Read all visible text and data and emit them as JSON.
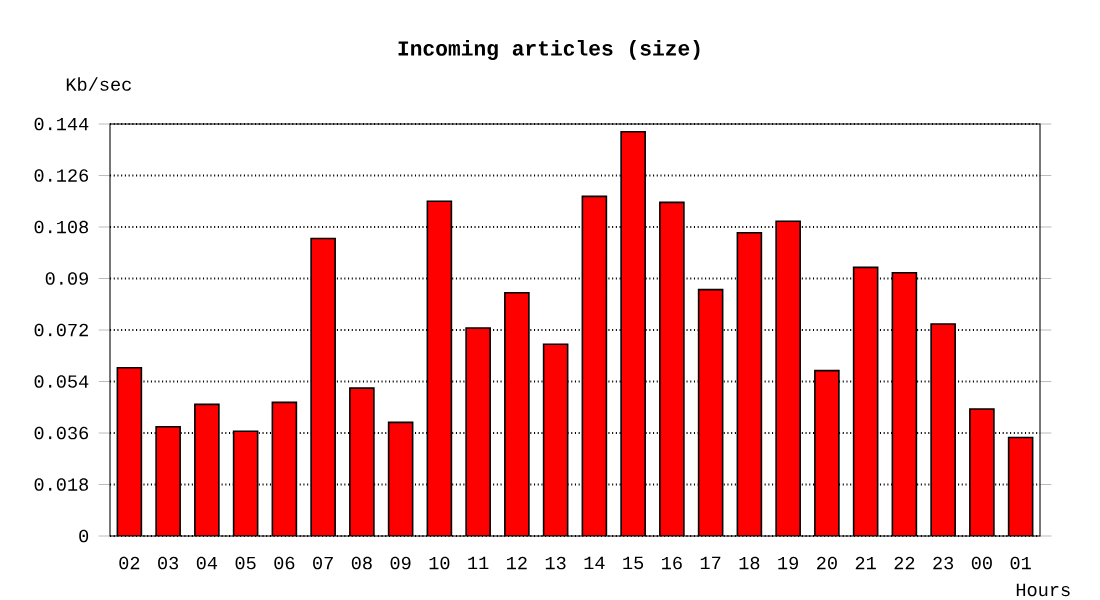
{
  "chart_data": {
    "type": "bar",
    "title": "Incoming articles (size)",
    "xlabel": "Hours",
    "ylabel": "Kb/sec",
    "categories": [
      "02",
      "03",
      "04",
      "05",
      "06",
      "07",
      "08",
      "09",
      "10",
      "11",
      "12",
      "13",
      "14",
      "15",
      "16",
      "17",
      "18",
      "19",
      "20",
      "21",
      "22",
      "23",
      "00",
      "01"
    ],
    "values": [
      0.0588,
      0.0382,
      0.046,
      0.0366,
      0.0467,
      0.104,
      0.0517,
      0.0397,
      0.117,
      0.0727,
      0.085,
      0.067,
      0.1187,
      0.1413,
      0.1166,
      0.0861,
      0.106,
      0.11,
      0.0578,
      0.0939,
      0.092,
      0.0741,
      0.0444,
      0.0344
    ],
    "color": "#ff0000",
    "ylim": [
      0,
      0.144
    ],
    "yticks": [
      0,
      0.018,
      0.036,
      0.054,
      0.072,
      0.09,
      0.108,
      0.126,
      0.144
    ],
    "grid": "y"
  }
}
